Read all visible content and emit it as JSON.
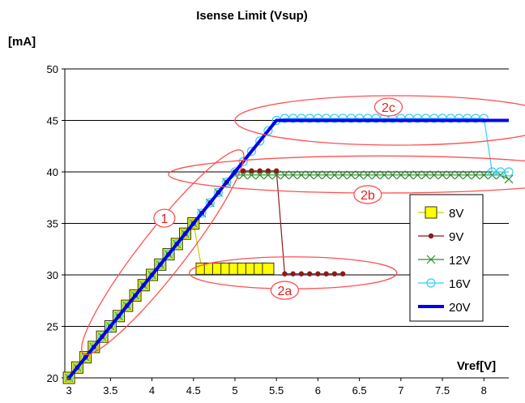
{
  "chart_data": {
    "type": "line",
    "title": "Isense Limit (Vsup)",
    "ylabel": "[mA]",
    "xlabel": "Vref[V]",
    "xlim": [
      2.95,
      8.3
    ],
    "ylim": [
      20,
      50
    ],
    "x_ticks": [
      "3",
      "3.5",
      "4",
      "4.5",
      "5",
      "5.5",
      "6",
      "6.5",
      "7",
      "7.5",
      "8"
    ],
    "y_ticks": [
      "20",
      "25",
      "30",
      "35",
      "40",
      "45",
      "50"
    ],
    "grid": "horizontal",
    "legend_position": "right",
    "series": [
      {
        "name": "8V",
        "color": "#ffff00",
        "edge": "#333300",
        "marker": "square",
        "x": [
          3.0,
          3.1,
          3.2,
          3.3,
          3.4,
          3.5,
          3.6,
          3.7,
          3.8,
          3.9,
          4.0,
          4.1,
          4.2,
          4.3,
          4.4,
          4.5,
          4.6,
          4.7,
          4.8,
          4.9,
          5.0,
          5.1,
          5.2,
          5.3,
          5.4
        ],
        "y": [
          20,
          21,
          22,
          23,
          24,
          25,
          26,
          27,
          28,
          29,
          30,
          31,
          32,
          33,
          34,
          35,
          30.6,
          30.6,
          30.6,
          30.6,
          30.6,
          30.6,
          30.6,
          30.6,
          30.6
        ]
      },
      {
        "name": "9V",
        "color": "#8b1a1a",
        "edge": "#8b1a1a",
        "marker": "dot",
        "x": [
          3.0,
          3.1,
          3.2,
          3.3,
          3.4,
          3.5,
          3.6,
          3.7,
          3.8,
          3.9,
          4.0,
          4.1,
          4.2,
          4.3,
          4.4,
          4.5,
          4.6,
          4.7,
          4.8,
          4.9,
          5.0,
          5.1,
          5.2,
          5.3,
          5.4,
          5.5,
          5.6,
          5.7,
          5.8,
          5.9,
          6.0,
          6.1,
          6.2,
          6.3
        ],
        "y": [
          20,
          21,
          22,
          23,
          24,
          25,
          26,
          27,
          28,
          29,
          30,
          31,
          32,
          33,
          34,
          35,
          36,
          37,
          38,
          39,
          40,
          40.1,
          40.1,
          40.1,
          40.1,
          40.1,
          30.1,
          30.1,
          30.1,
          30.1,
          30.1,
          30.1,
          30.1,
          30.1
        ]
      },
      {
        "name": "12V",
        "color": "#2e8b2e",
        "edge": "#2e8b2e",
        "marker": "x",
        "x": [
          3.0,
          3.1,
          3.2,
          3.3,
          3.4,
          3.5,
          3.6,
          3.7,
          3.8,
          3.9,
          4.0,
          4.1,
          4.2,
          4.3,
          4.4,
          4.5,
          4.6,
          4.7,
          4.8,
          4.9,
          5.0,
          5.1,
          5.2,
          5.3,
          5.4,
          5.5,
          5.6,
          5.7,
          5.8,
          5.9,
          6.0,
          6.1,
          6.2,
          6.3,
          6.4,
          6.5,
          6.6,
          6.7,
          6.8,
          6.9,
          7.0,
          7.1,
          7.2,
          7.3,
          7.4,
          7.5,
          7.6,
          7.7,
          7.8,
          7.9,
          8.0,
          8.1,
          8.2,
          8.3
        ],
        "y": [
          20,
          21,
          22,
          23,
          24,
          25,
          26,
          27,
          28,
          29,
          30,
          31,
          32,
          33,
          34,
          35,
          36,
          37,
          38,
          39,
          39.7,
          39.7,
          39.7,
          39.7,
          39.7,
          39.7,
          39.7,
          39.7,
          39.7,
          39.7,
          39.7,
          39.7,
          39.7,
          39.7,
          39.7,
          39.7,
          39.7,
          39.7,
          39.7,
          39.7,
          39.7,
          39.7,
          39.7,
          39.7,
          39.7,
          39.7,
          39.7,
          39.7,
          39.7,
          39.7,
          39.7,
          39.7,
          39.7,
          39.3
        ]
      },
      {
        "name": "16V",
        "color": "#33ccff",
        "edge": "#33ccff",
        "marker": "circle",
        "x": [
          3.0,
          3.1,
          3.2,
          3.3,
          3.4,
          3.5,
          3.6,
          3.7,
          3.8,
          3.9,
          4.0,
          4.1,
          4.2,
          4.3,
          4.4,
          4.5,
          4.6,
          4.7,
          4.8,
          4.9,
          5.0,
          5.1,
          5.2,
          5.3,
          5.4,
          5.5,
          5.6,
          5.7,
          5.8,
          5.9,
          6.0,
          6.1,
          6.2,
          6.3,
          6.4,
          6.5,
          6.6,
          6.7,
          6.8,
          6.9,
          7.0,
          7.1,
          7.2,
          7.3,
          7.4,
          7.5,
          7.6,
          7.7,
          7.8,
          7.9,
          8.0,
          8.1,
          8.2,
          8.3
        ],
        "y": [
          20,
          21,
          22,
          23,
          24,
          25,
          26,
          27,
          28,
          29,
          30,
          31,
          32,
          33,
          34,
          35,
          36,
          37,
          38,
          39,
          40,
          41,
          42,
          43,
          44,
          45,
          45.2,
          45.2,
          45.2,
          45.2,
          45.2,
          45.2,
          45.2,
          45.2,
          45.2,
          45.2,
          45.2,
          45.2,
          45.2,
          45.2,
          45.2,
          45.2,
          45.2,
          45.2,
          45.2,
          45.2,
          45.2,
          45.2,
          45.2,
          45.2,
          45.2,
          40.0,
          40.0,
          40.0
        ]
      },
      {
        "name": "20V",
        "color": "#0000ee",
        "edge": "#0000ee",
        "marker": "none",
        "x": [
          3.0,
          3.5,
          4.0,
          4.5,
          5.0,
          5.5,
          6.0,
          6.5,
          7.0,
          7.5,
          8.0,
          8.3
        ],
        "y": [
          20,
          25,
          30,
          35,
          40,
          45,
          45,
          45,
          45,
          45,
          45,
          45
        ]
      }
    ],
    "annotations": [
      {
        "label": "1",
        "x": 4.15,
        "y": 35.5
      },
      {
        "label": "2a",
        "x": 5.6,
        "y": 28.5
      },
      {
        "label": "2b",
        "x": 6.6,
        "y": 37.8
      },
      {
        "label": "2c",
        "x": 6.85,
        "y": 46.3
      }
    ],
    "ellipses": [
      {
        "cx": 4.13,
        "cy": 32.2,
        "rx": 1.55,
        "ry": 2.15,
        "angle": -52
      },
      {
        "cx": 5.7,
        "cy": 30.2,
        "rx": 1.25,
        "ry": 1.55,
        "angle": 0
      },
      {
        "cx": 6.75,
        "cy": 39.75,
        "rx": 2.55,
        "ry": 1.8,
        "angle": 0
      },
      {
        "cx": 6.95,
        "cy": 45.0,
        "rx": 1.95,
        "ry": 2.4,
        "angle": 0
      }
    ]
  }
}
